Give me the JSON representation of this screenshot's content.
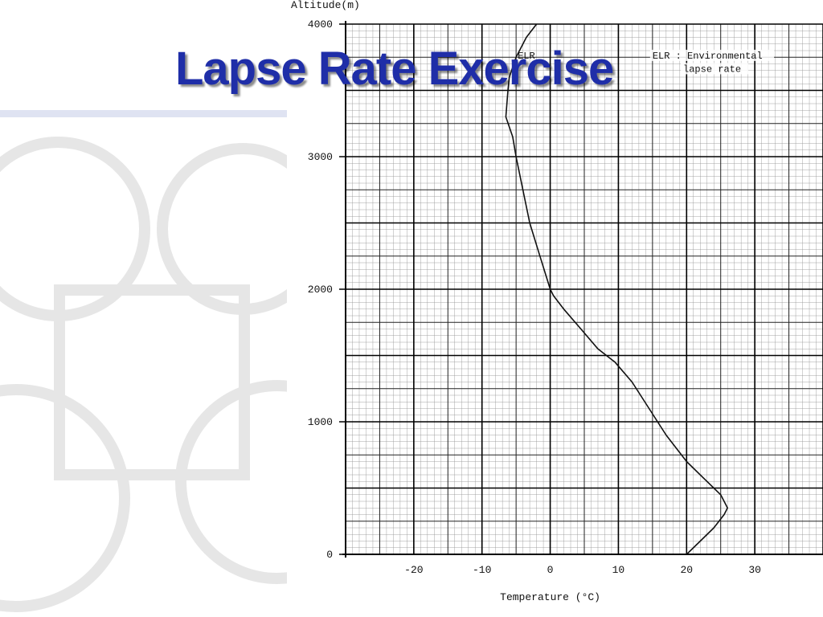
{
  "slide": {
    "title": "Lapse Rate Exercise"
  },
  "chart_data": {
    "type": "line",
    "title": "",
    "xlabel": "Temperature (°C)",
    "ylabel": "Altitude(m)",
    "xlim": [
      -30,
      40
    ],
    "ylim": [
      0,
      4000
    ],
    "x_ticks": [
      -20,
      -10,
      0,
      10,
      20,
      30
    ],
    "y_ticks": [
      0,
      1000,
      2000,
      3000,
      4000
    ],
    "grid": true,
    "series": [
      {
        "name": "ELR",
        "x": [
          20,
          22,
          24,
          25.5,
          26,
          25,
          23,
          20,
          17,
          14.5,
          12,
          9.5,
          7,
          4.5,
          2,
          0.5,
          0,
          -1.5,
          -3,
          -4,
          -5,
          -5.5,
          -6.5,
          -6.2,
          -6,
          -5,
          -3.5,
          -2
        ],
        "y": [
          0,
          100,
          200,
          300,
          350,
          450,
          550,
          700,
          900,
          1100,
          1300,
          1450,
          1550,
          1700,
          1850,
          1950,
          2000,
          2250,
          2500,
          2750,
          3000,
          3150,
          3300,
          3500,
          3600,
          3750,
          3900,
          4000
        ],
        "color": "#111111"
      }
    ],
    "annotations": [
      {
        "label": "ELR"
      },
      {
        "label": "ELR : Environmental"
      },
      {
        "label": "lapse rate"
      }
    ]
  }
}
